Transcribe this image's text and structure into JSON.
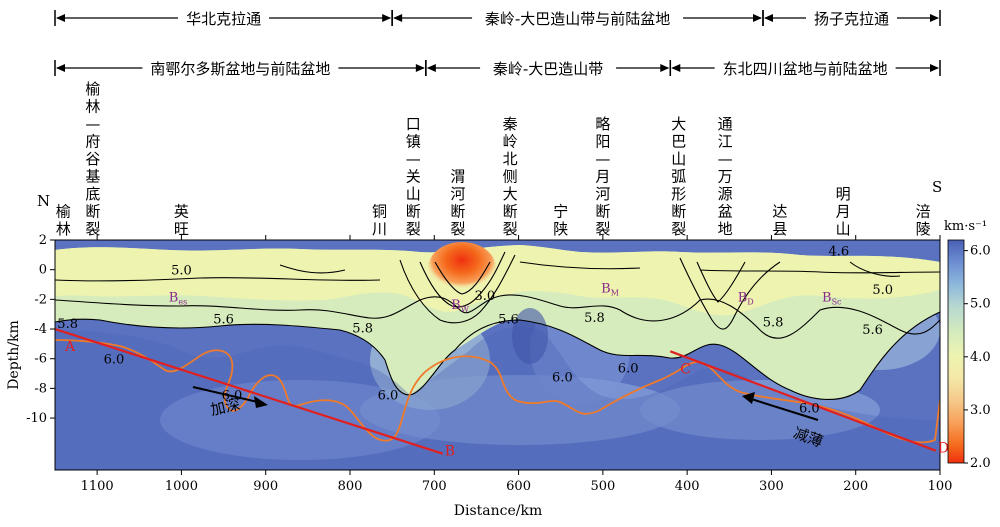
{
  "chart_data": {
    "type": "heatmap",
    "x_axis": {
      "label": "Distance/km",
      "range": [
        1150,
        100
      ],
      "ticks": [
        1100,
        1000,
        900,
        800,
        700,
        600,
        500,
        400,
        300,
        200,
        100
      ]
    },
    "y_axis": {
      "label": "Depth/km",
      "range": [
        -13.5,
        2
      ],
      "ticks": [
        2,
        0,
        -2,
        -4,
        -6,
        -8,
        -10
      ]
    },
    "colorbar": {
      "label": "km·s⁻¹",
      "range": [
        2.0,
        6.2
      ],
      "ticks": [
        6.0,
        5.0,
        4.0,
        3.0,
        2.0
      ],
      "tick_labels": [
        "6.0",
        "5.0",
        "4.0",
        "3.0",
        "2.0"
      ],
      "colors": [
        "#f03010",
        "#f56a1c",
        "#f8a05a",
        "#f5c98a",
        "#f4e8a8",
        "#eef3b0",
        "#d6ecbc",
        "#b7d9d0",
        "#8eb8dc",
        "#6c8ed2",
        "#4a5fb4"
      ]
    },
    "tectonic_units_row1": [
      {
        "name": "华北克拉通",
        "from": 1150,
        "to": 750
      },
      {
        "name": "秦岭-大巴造山带与前陆盆地",
        "from": 750,
        "to": 310
      },
      {
        "name": "扬子克拉通",
        "from": 310,
        "to": 100
      }
    ],
    "tectonic_units_row2": [
      {
        "name": "南鄂尔多斯盆地与前陆盆地",
        "from": 1150,
        "to": 710
      },
      {
        "name": "秦岭-大巴造山带",
        "from": 710,
        "to": 420
      },
      {
        "name": "东北四川盆地与前陆盆地",
        "from": 420,
        "to": 100
      }
    ],
    "faults": [
      {
        "name": "榆林—府谷基底断裂",
        "x": 1105
      },
      {
        "name": "口镇—关山断裂",
        "x": 725
      },
      {
        "name": "渭河断裂",
        "x": 672
      },
      {
        "name": "秦岭北侧大断裂",
        "x": 610
      },
      {
        "name": "略阳—月河断裂",
        "x": 500
      },
      {
        "name": "大巴山弧形断裂",
        "x": 410
      },
      {
        "name": "通江—万源盆地",
        "x": 355
      }
    ],
    "localities": [
      {
        "name": "榆林",
        "x": 1140
      },
      {
        "name": "英旺",
        "x": 1000
      },
      {
        "name": "铜川",
        "x": 765
      },
      {
        "name": "宁陕",
        "x": 550
      },
      {
        "name": "达县",
        "x": 290
      },
      {
        "name": "明月山",
        "x": 215
      },
      {
        "name": "涪陵",
        "x": 120
      }
    ],
    "end_labels": {
      "north": "N",
      "south": "S"
    },
    "contour_labels": [
      {
        "text": "5.0",
        "x": 1000,
        "y": 0.0
      },
      {
        "text": "5.6",
        "x": 950,
        "y": -3.3
      },
      {
        "text": "5.8",
        "x": 1135,
        "y": -3.6
      },
      {
        "text": "5.8",
        "x": 785,
        "y": -3.9
      },
      {
        "text": "6.0",
        "x": 1080,
        "y": -6.0
      },
      {
        "text": "6.0",
        "x": 940,
        "y": -8.4
      },
      {
        "text": "6.0",
        "x": 755,
        "y": -8.4
      },
      {
        "text": "3.0",
        "x": 640,
        "y": -1.7
      },
      {
        "text": "5.6",
        "x": 612,
        "y": -3.3
      },
      {
        "text": "5.8",
        "x": 510,
        "y": -3.2
      },
      {
        "text": "6.0",
        "x": 548,
        "y": -7.2
      },
      {
        "text": "6.0",
        "x": 470,
        "y": -6.6
      },
      {
        "text": "4.6",
        "x": 220,
        "y": 1.3
      },
      {
        "text": "5.0",
        "x": 168,
        "y": -1.3
      },
      {
        "text": "5.8",
        "x": 298,
        "y": -3.5
      },
      {
        "text": "5.6",
        "x": 180,
        "y": -4.0
      },
      {
        "text": "6.0",
        "x": 255,
        "y": -9.3
      }
    ],
    "basin_labels": [
      {
        "text": "B",
        "sub": "es",
        "x": 1015,
        "y": -1.8
      },
      {
        "text": "B",
        "sub": "W",
        "x": 680,
        "y": -2.3
      },
      {
        "text": "B",
        "sub": "M",
        "x": 502,
        "y": -1.2
      },
      {
        "text": "B",
        "sub": "D",
        "x": 340,
        "y": -1.8
      },
      {
        "text": "B",
        "sub": "Sc",
        "x": 240,
        "y": -1.8
      }
    ],
    "profile_lines": [
      {
        "from_label": "A",
        "to_label": "B",
        "from": [
          1150,
          -4.0
        ],
        "to": [
          690,
          -12.4
        ]
      },
      {
        "from_label": "C",
        "to_label": "D",
        "from": [
          420,
          -5.5
        ],
        "to": [
          105,
          -12.2
        ]
      }
    ],
    "arrow_annotations": [
      {
        "text": "加深",
        "x": 965,
        "y": -9.9
      },
      {
        "text": "减薄",
        "x": 270,
        "y": -10.4
      }
    ]
  }
}
